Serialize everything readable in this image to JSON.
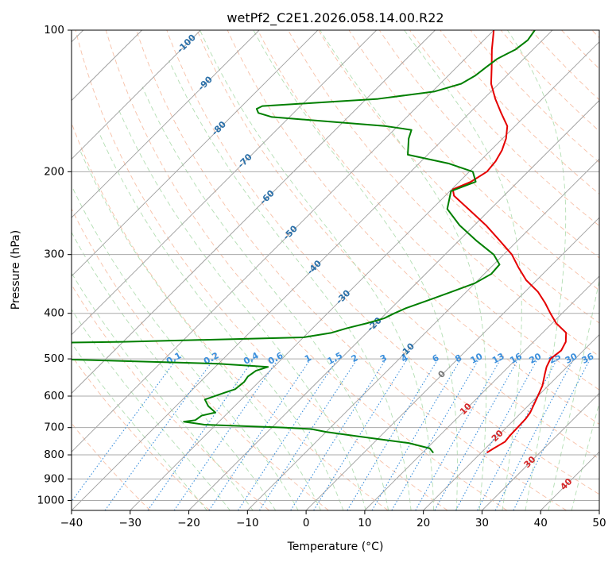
{
  "chart_data": {
    "type": "line",
    "title": "wetPf2_C2E1.2026.058.14.00.R22",
    "xlabel": "Temperature (°C)",
    "ylabel": "Pressure (hPa)",
    "xlim": [
      -40,
      50
    ],
    "ylim": [
      1050,
      100
    ],
    "y_scale": "log",
    "skew": 1,
    "x_ticks": [
      -40,
      -30,
      -20,
      -10,
      0,
      10,
      20,
      30,
      40,
      50
    ],
    "x_tick_labels": [
      "−40",
      "−30",
      "−20",
      "−10",
      "0",
      "10",
      "20",
      "30",
      "40",
      "50"
    ],
    "y_ticks": [
      100,
      200,
      300,
      400,
      500,
      600,
      700,
      800,
      900,
      1000
    ],
    "y_tick_labels": [
      "100",
      "200",
      "300",
      "400",
      "500",
      "600",
      "700",
      "800",
      "900",
      "1000"
    ],
    "isotherm_labels": [
      {
        "text": "-100",
        "t": -100,
        "p": 107,
        "color": "#2a6fa8"
      },
      {
        "text": "-90",
        "t": -90,
        "p": 130,
        "color": "#2a6fa8"
      },
      {
        "text": "-80",
        "t": -80,
        "p": 162,
        "color": "#2a6fa8"
      },
      {
        "text": "-70",
        "t": -70,
        "p": 190,
        "color": "#2a6fa8"
      },
      {
        "text": "-60",
        "t": -60,
        "p": 227,
        "color": "#2a6fa8"
      },
      {
        "text": "-50",
        "t": -50,
        "p": 270,
        "color": "#2a6fa8"
      },
      {
        "text": "-40",
        "t": -40,
        "p": 320,
        "color": "#2a6fa8"
      },
      {
        "text": "-30",
        "t": -30,
        "p": 370,
        "color": "#2a6fa8"
      },
      {
        "text": "-20",
        "t": -20,
        "p": 423,
        "color": "#2a6fa8"
      },
      {
        "text": "-10",
        "t": -10,
        "p": 480,
        "color": "#2a6fa8"
      },
      {
        "text": "0",
        "t": 0,
        "p": 540,
        "color": "#777777"
      },
      {
        "text": "10",
        "t": 10,
        "p": 640,
        "color": "#d62728"
      },
      {
        "text": "20",
        "t": 20,
        "p": 730,
        "color": "#d62728"
      },
      {
        "text": "30",
        "t": 30,
        "p": 830,
        "color": "#d62728"
      },
      {
        "text": "40",
        "t": 40,
        "p": 925,
        "color": "#d62728"
      }
    ],
    "mixing_ratio_labels": [
      "0.1",
      "0.2",
      "0.4",
      "0.6",
      "1",
      "1.5",
      "2",
      "3",
      "4",
      "6",
      "8",
      "10",
      "13",
      "16",
      "20",
      "25",
      "30",
      "36"
    ],
    "mixing_ratio_values": [
      0.1,
      0.2,
      0.4,
      0.6,
      1,
      1.5,
      2,
      3,
      4,
      6,
      8,
      10,
      13,
      16,
      20,
      25,
      30,
      36
    ],
    "series": [
      {
        "name": "Temperature",
        "color": "#e50000",
        "points": [
          [
            21.0,
            790
          ],
          [
            21.4,
            775
          ],
          [
            22.2,
            750
          ],
          [
            22.0,
            730
          ],
          [
            21.9,
            700
          ],
          [
            21.8,
            670
          ],
          [
            21.5,
            650
          ],
          [
            20.0,
            600
          ],
          [
            19.0,
            570
          ],
          [
            17.5,
            540
          ],
          [
            16.5,
            520
          ],
          [
            15.8,
            500
          ],
          [
            16.2,
            480
          ],
          [
            15.5,
            460
          ],
          [
            14.0,
            440
          ],
          [
            10.7,
            420
          ],
          [
            8.0,
            400
          ],
          [
            5.3,
            380
          ],
          [
            2.2,
            360
          ],
          [
            -1.8,
            340
          ],
          [
            -5.2,
            320
          ],
          [
            -8.6,
            300
          ],
          [
            -13.1,
            280
          ],
          [
            -18.0,
            260
          ],
          [
            -23.8,
            240
          ],
          [
            -28.5,
            225
          ],
          [
            -29.8,
            218
          ],
          [
            -28.0,
            210
          ],
          [
            -27.0,
            200
          ],
          [
            -27.3,
            190
          ],
          [
            -28.1,
            180
          ],
          [
            -29.4,
            170
          ],
          [
            -31.3,
            160
          ],
          [
            -34.6,
            150
          ],
          [
            -38.0,
            140
          ],
          [
            -41.3,
            130
          ],
          [
            -44.0,
            120
          ],
          [
            -47.0,
            110
          ],
          [
            -50.0,
            100
          ]
        ]
      },
      {
        "name": "Dewpoint",
        "color": "#007f00",
        "points": [
          [
            11.7,
            790
          ],
          [
            10.5,
            775
          ],
          [
            6.0,
            755
          ],
          [
            0.0,
            740
          ],
          [
            -4.0,
            730
          ],
          [
            -10.0,
            715
          ],
          [
            -13.0,
            705
          ],
          [
            -18.0,
            700
          ],
          [
            -32.0,
            690
          ],
          [
            -36.0,
            680
          ],
          [
            -34.3,
            675
          ],
          [
            -34.0,
            660
          ],
          [
            -32.2,
            650
          ],
          [
            -34.5,
            630
          ],
          [
            -36.2,
            610
          ],
          [
            -34.0,
            590
          ],
          [
            -32.8,
            580
          ],
          [
            -32.5,
            560
          ],
          [
            -32.8,
            545
          ],
          [
            -32.4,
            530
          ],
          [
            -31.0,
            520
          ],
          [
            -40.0,
            512
          ],
          [
            -70.0,
            500
          ],
          [
            -74.0,
            495
          ],
          [
            -79.0,
            492
          ],
          [
            -78.0,
            463
          ],
          [
            -60.0,
            460
          ],
          [
            -45.0,
            455
          ],
          [
            -30.0,
            450
          ],
          [
            -26.0,
            440
          ],
          [
            -24.1,
            430
          ],
          [
            -21.6,
            420
          ],
          [
            -19.5,
            410
          ],
          [
            -18.6,
            400
          ],
          [
            -17.5,
            390
          ],
          [
            -15.0,
            375
          ],
          [
            -12.5,
            360
          ],
          [
            -10.0,
            345
          ],
          [
            -8.8,
            330
          ],
          [
            -9.0,
            315
          ],
          [
            -11.7,
            300
          ],
          [
            -17.1,
            280
          ],
          [
            -22.5,
            260
          ],
          [
            -27.4,
            240
          ],
          [
            -29.8,
            220
          ],
          [
            -27.2,
            210
          ],
          [
            -29.4,
            200
          ],
          [
            -35.0,
            192
          ],
          [
            -43.4,
            184
          ],
          [
            -46.0,
            170
          ],
          [
            -47.0,
            163
          ],
          [
            -52.0,
            160
          ],
          [
            -73.0,
            153
          ],
          [
            -76.0,
            150
          ],
          [
            -77.0,
            147
          ],
          [
            -76.5,
            145
          ],
          [
            -58.0,
            140
          ],
          [
            -49.6,
            135
          ],
          [
            -46.4,
            130
          ],
          [
            -45.4,
            125
          ],
          [
            -45.0,
            120
          ],
          [
            -44.5,
            115
          ],
          [
            -43.0,
            110
          ],
          [
            -42.5,
            105
          ],
          [
            -43.0,
            100
          ]
        ]
      }
    ]
  }
}
